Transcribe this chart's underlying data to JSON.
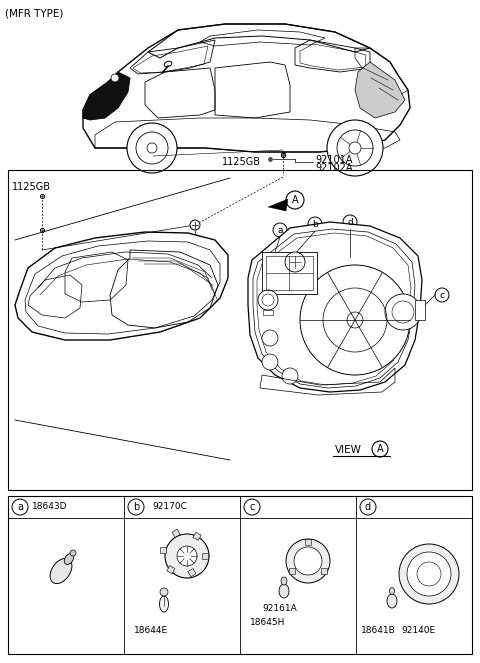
{
  "background_color": "#ffffff",
  "labels": {
    "mfr_type": "(MFR TYPE)",
    "part_1125GB_top": "1125GB",
    "part_92101A": "92101A",
    "part_92102A": "92102A",
    "part_1125GB_left": "1125GB",
    "arrow_A": "A",
    "callout_a": "a",
    "callout_b": "b",
    "callout_c": "c",
    "callout_d": "d",
    "view_text": "VIEW",
    "view_A": "A",
    "box_a": "a",
    "box_a_num": "18643D",
    "box_b": "b",
    "box_b_num1": "92170C",
    "box_b_num2": "18644E",
    "box_c": "c",
    "box_c_num1": "92161A",
    "box_c_num2": "18645H",
    "box_d": "d",
    "box_d_num1": "18641B",
    "box_d_num2": "92140E"
  }
}
